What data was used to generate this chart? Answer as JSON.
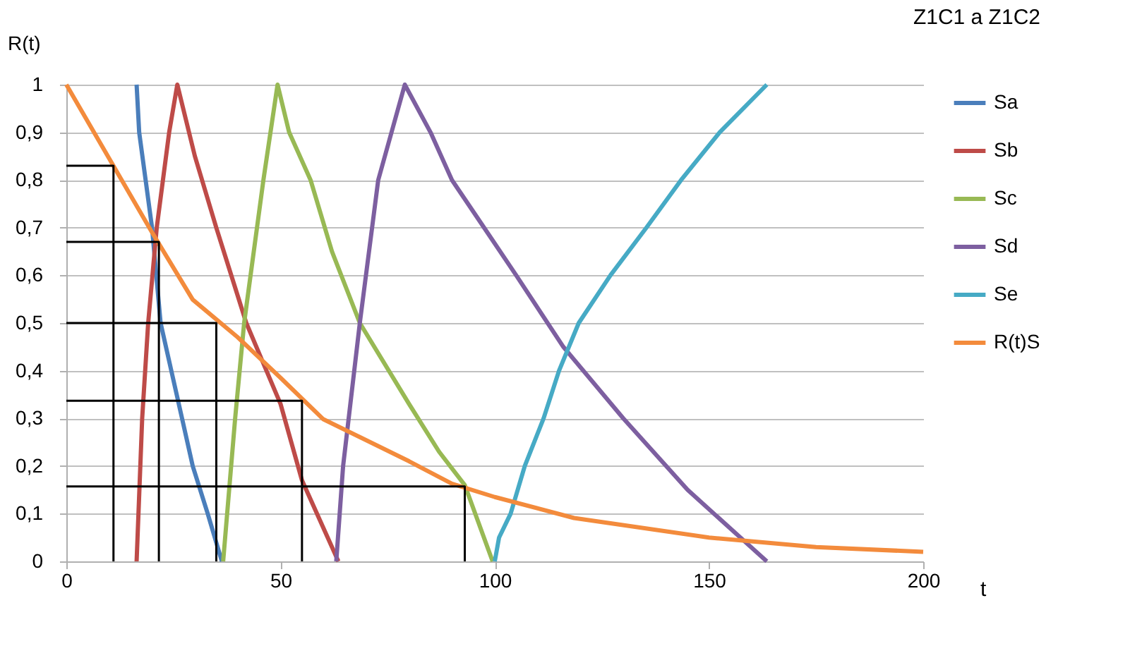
{
  "chart_data": {
    "type": "line",
    "title": "Z1C1 a Z1C2",
    "xlabel": "t",
    "ylabel": "R(t)",
    "xlim": [
      0,
      200
    ],
    "xticks": [
      0,
      50,
      100,
      150,
      200
    ],
    "ylim": [
      0,
      1
    ],
    "yticks": [
      0,
      {
        "value": 0.1,
        "label": "0,1"
      },
      {
        "value": 0.2,
        "label": "0,2"
      },
      {
        "value": 0.3,
        "label": "0,3"
      },
      {
        "value": 0.4,
        "label": "0,4"
      },
      {
        "value": 0.5,
        "label": "0,5"
      },
      {
        "value": 0.6,
        "label": "0,6"
      },
      {
        "value": 0.7,
        "label": "0,7"
      },
      {
        "value": 0.8,
        "label": "0,8"
      },
      {
        "value": 0.9,
        "label": "0,9"
      },
      1
    ],
    "grid": "y",
    "legend": "right",
    "marker": "none",
    "line_style": "solid",
    "series": [
      {
        "name": "Sa",
        "color": "#4a7ebb",
        "x": [
          16.4,
          17,
          18.5,
          20,
          21,
          22,
          24.5,
          27,
          29.5,
          33,
          36.3
        ],
        "values": [
          1,
          0.9,
          0.8,
          0.7,
          0.6,
          0.5,
          0.4,
          0.3,
          0.2,
          0.1,
          0
        ]
      },
      {
        "name": "Sb",
        "color": "#be4b48",
        "x": [
          16.4,
          17.7,
          19.1,
          21.1,
          24,
          25.9,
          30,
          35,
          42,
          50,
          55,
          63.5
        ],
        "values": [
          0,
          0.3,
          0.5,
          0.7,
          0.9,
          1,
          0.85,
          0.7,
          0.5,
          0.33,
          0.17,
          0
        ]
      },
      {
        "name": "Sc",
        "color": "#98b954",
        "x": [
          36.6,
          39.4,
          41.5,
          46,
          49.3,
          52,
          57,
          62,
          68.5,
          80,
          87,
          93,
          99.5
        ],
        "values": [
          0,
          0.3,
          0.5,
          0.8,
          1,
          0.9,
          0.8,
          0.65,
          0.5,
          0.33,
          0.23,
          0.16,
          0
        ]
      },
      {
        "name": "Sd",
        "color": "#7d5fa0",
        "x": [
          63,
          64.6,
          68.5,
          72.8,
          79,
          85,
          90,
          96,
          105,
          116,
          130,
          145,
          163.5
        ],
        "values": [
          0,
          0.2,
          0.5,
          0.8,
          1,
          0.9,
          0.8,
          0.72,
          0.6,
          0.45,
          0.3,
          0.15,
          0
        ]
      },
      {
        "name": "Se",
        "color": "#46aac5",
        "x": [
          100,
          101,
          103.7,
          107,
          111.4,
          115,
          119.6,
          127,
          135.4,
          143.5,
          152.5,
          163.5
        ],
        "values": [
          0,
          0.05,
          0.1,
          0.2,
          0.3,
          0.4,
          0.5,
          0.6,
          0.7,
          0.8,
          0.9,
          1
        ]
      },
      {
        "name": "R(t)S",
        "color": "#f38b3c",
        "x": [
          0,
          10,
          20,
          29.5,
          40,
          50,
          60,
          80,
          90,
          100,
          118.5,
          150,
          175,
          200
        ],
        "values": [
          1,
          0.845,
          0.69,
          0.549,
          0.47,
          0.385,
          0.298,
          0.21,
          0.163,
          0.135,
          0.091,
          0.05,
          0.03,
          0.02
        ]
      },
      {
        "color": "#000000",
        "x": [
          0,
          11,
          11
        ],
        "values": [
          0.83,
          0.83,
          0
        ]
      },
      {
        "color": "#000000",
        "x": [
          0,
          21.6,
          21.6
        ],
        "values": [
          0.67,
          0.67,
          0
        ]
      },
      {
        "color": "#000000",
        "x": [
          0,
          35,
          35
        ],
        "values": [
          0.5,
          0.5,
          0
        ]
      },
      {
        "color": "#000000",
        "x": [
          0,
          55,
          55
        ],
        "values": [
          0.337,
          0.337,
          0
        ]
      },
      {
        "color": "#000000",
        "x": [
          0,
          93,
          93
        ],
        "values": [
          0.157,
          0.157,
          0
        ]
      }
    ]
  }
}
